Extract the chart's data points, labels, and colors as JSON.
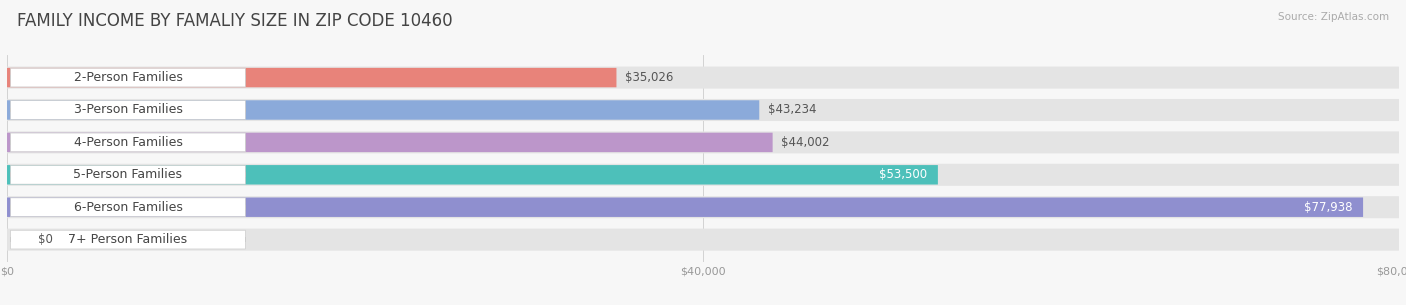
{
  "title": "FAMILY INCOME BY FAMALIY SIZE IN ZIP CODE 10460",
  "source": "Source: ZipAtlas.com",
  "categories": [
    "2-Person Families",
    "3-Person Families",
    "4-Person Families",
    "5-Person Families",
    "6-Person Families",
    "7+ Person Families"
  ],
  "values": [
    35026,
    43234,
    44002,
    53500,
    77938,
    0
  ],
  "bar_colors": [
    "#E8837A",
    "#8BAADA",
    "#BC96CA",
    "#4DC0BA",
    "#8F8FCF",
    "#F2A0B8"
  ],
  "value_labels": [
    "$35,026",
    "$43,234",
    "$44,002",
    "$53,500",
    "$77,938",
    "$0"
  ],
  "value_label_inside": [
    false,
    false,
    false,
    true,
    true,
    false
  ],
  "xlim": [
    0,
    80000
  ],
  "xticks": [
    0,
    40000,
    80000
  ],
  "xtick_labels": [
    "$0",
    "$40,000",
    "$80,000"
  ],
  "background_color": "#f7f7f7",
  "bar_bg_color": "#e4e4e4",
  "title_fontsize": 12,
  "label_fontsize": 9,
  "value_fontsize": 8.5
}
